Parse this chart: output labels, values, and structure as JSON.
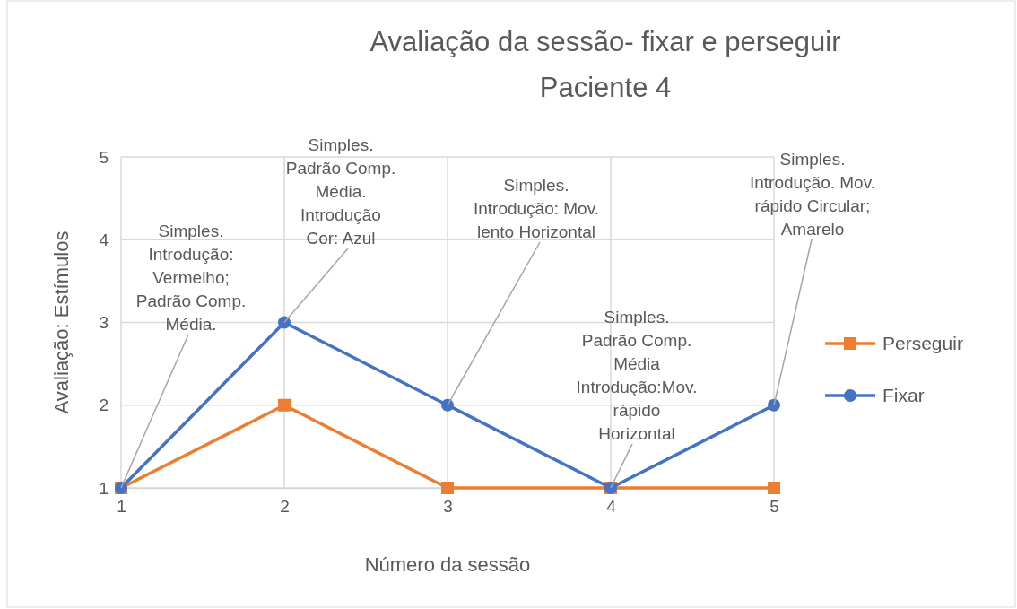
{
  "chart_data": {
    "type": "line",
    "title": "Avaliação da sessão- fixar e perseguir",
    "subtitle": "Paciente 4",
    "xlabel": "Número da sessão",
    "ylabel": "Avaliação: Estímulos",
    "x": [
      1,
      2,
      3,
      4,
      5
    ],
    "xlim": [
      1,
      5
    ],
    "xticks": [
      1,
      2,
      3,
      4,
      5
    ],
    "ylim": [
      1,
      5
    ],
    "yticks": [
      1,
      2,
      3,
      4,
      5
    ],
    "grid": true,
    "legend": "right",
    "series": [
      {
        "name": "Perseguir",
        "color": "#ed7d31",
        "values": [
          1,
          2,
          1,
          1,
          1
        ],
        "marker": "square"
      },
      {
        "name": "Fixar",
        "color": "#4472c4",
        "values": [
          1,
          3,
          2,
          1,
          2
        ],
        "marker": "circle"
      }
    ],
    "annotations": [
      {
        "text": "Simples. Introdução: Vermelho; Padrão Comp. Média.",
        "x": 1,
        "y": 1
      },
      {
        "text": "Simples. Padrão Comp. Média. Introdução Cor: Azul",
        "x": 2,
        "y": 3
      },
      {
        "text": "Simples. Introdução: Mov. lento Horizontal",
        "x": 3,
        "y": 2
      },
      {
        "text": "Simples. Padrão Comp. Média Introdução:Mov. rápido Horizontal",
        "x": 4,
        "y": 1
      },
      {
        "text": "Simples. Introdução. Mov. rápido Circular; Amarelo",
        "x": 5,
        "y": 2
      }
    ]
  }
}
